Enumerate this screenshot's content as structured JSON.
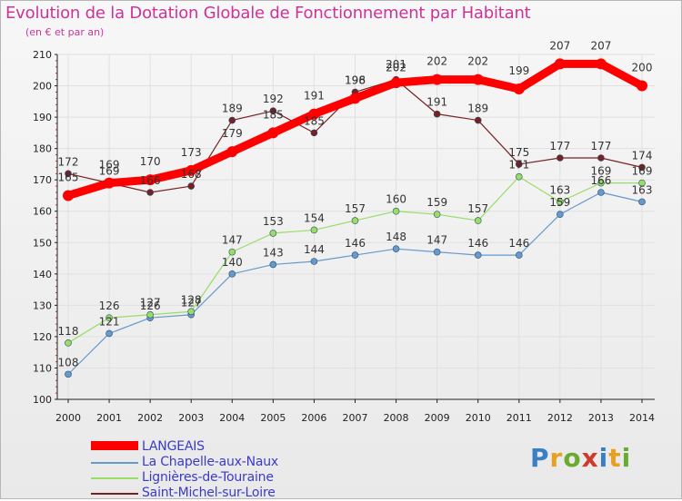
{
  "header": {
    "title": "Evolution de la Dotation Globale de Fonctionnement par Habitant",
    "subtitle": "(en € et par an)"
  },
  "logo": {
    "text": "Proxiti"
  },
  "colors": {
    "title": "#cc3399",
    "legend_text": "#3b3bc8",
    "grid": "#e0e0e0",
    "axis": "#222222"
  },
  "chart_data": {
    "type": "line",
    "title": "Evolution de la Dotation Globale de Fonctionnement par Habitant",
    "subtitle": "(en € et par an)",
    "xlabel": "",
    "ylabel": "",
    "ylim": [
      100,
      210
    ],
    "yticks": [
      100,
      110,
      120,
      130,
      140,
      150,
      160,
      170,
      180,
      190,
      200,
      210
    ],
    "categories": [
      "2000",
      "2001",
      "2002",
      "2003",
      "2004",
      "2005",
      "2006",
      "2007",
      "2008",
      "2009",
      "2010",
      "2011",
      "2012",
      "2013",
      "2014"
    ],
    "legend_position": "bottom-left",
    "series": [
      {
        "name": "LANGEAIS",
        "color": "#ff0000",
        "values": [
          165,
          169,
          170,
          173,
          179,
          185,
          191,
          196,
          201,
          202,
          202,
          199,
          207,
          207,
          200
        ]
      },
      {
        "name": "La Chapelle-aux-Naux",
        "color": "#6699cc",
        "values": [
          108,
          121,
          126,
          127,
          140,
          143,
          144,
          146,
          148,
          147,
          146,
          146,
          159,
          166,
          163
        ]
      },
      {
        "name": "Lignières-de-Touraine",
        "color": "#99dd66",
        "values": [
          118,
          126,
          127,
          128,
          147,
          153,
          154,
          157,
          160,
          159,
          157,
          171,
          163,
          169,
          169
        ]
      },
      {
        "name": "Saint-Michel-sur-Loire",
        "color": "#772222",
        "values": [
          172,
          169,
          166,
          168,
          189,
          192,
          185,
          198,
          202,
          191,
          189,
          175,
          177,
          177,
          174
        ]
      }
    ]
  }
}
